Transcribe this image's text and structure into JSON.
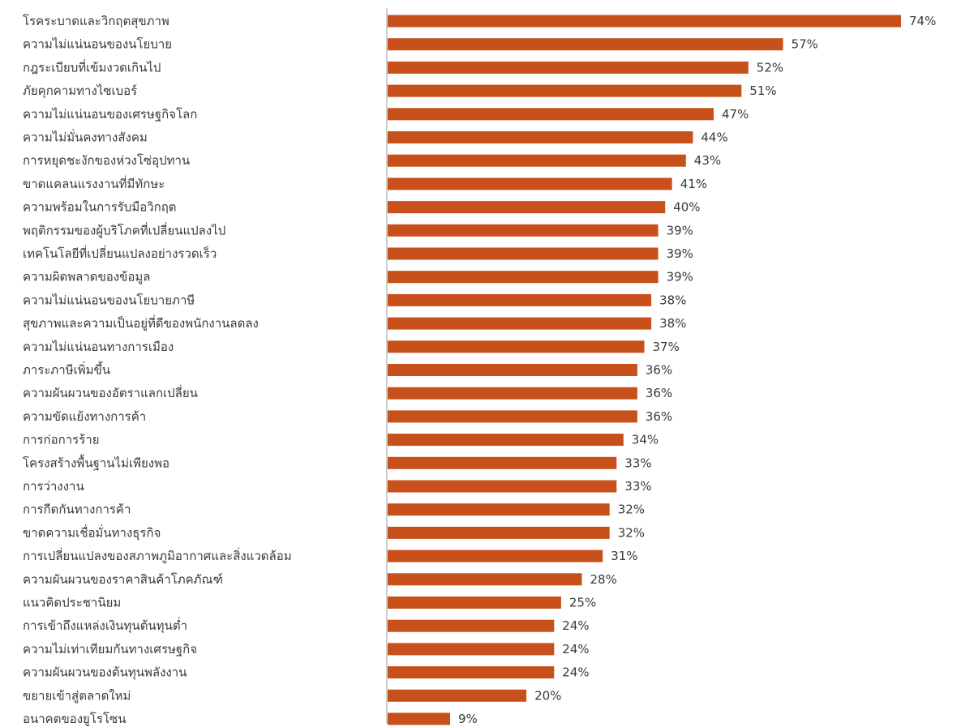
{
  "chart_data": {
    "type": "bar",
    "orientation": "horizontal",
    "title": "",
    "xlabel": "",
    "ylabel": "",
    "xlim": [
      0,
      80
    ],
    "grid": false,
    "legend": "none",
    "value_suffix": "%",
    "bar_color": "#C8501A",
    "axis_color": "#9E9E9E",
    "text_color": "#3A3A3A",
    "categories": [
      "โรคระบาดและวิกฤตสุขภาพ",
      "ความไม่แน่นอนของนโยบาย",
      "กฎระเบียบที่เข้มงวดเกินไป",
      "ภัยคุกคามทางไซเบอร์",
      "ความไม่แน่นอนของเศรษฐกิจโลก",
      "ความไม่มั่นคงทางสังคม",
      "การหยุดชะงักของห่วงโซ่อุปทาน",
      "ขาดแคลนแรงงานที่มีทักษะ",
      "ความพร้อมในการรับมือวิกฤต",
      "พฤติกรรมของผู้บริโภคที่เปลี่ยนแปลงไป",
      "เทคโนโลยีที่เปลี่ยนแปลงอย่างรวดเร็ว",
      "ความผิดพลาดของข้อมูล",
      "ความไม่แน่นอนของนโยบายภาษี",
      "สุขภาพและความเป็นอยู่ที่ดีของพนักงานลดลง",
      "ความไม่แน่นอนทางการเมือง",
      "ภาระภาษีเพิ่มขึ้น",
      "ความผันผวนของอัตราแลกเปลี่ยน",
      "ความขัดแย้งทางการค้า",
      "การก่อการร้าย",
      "โครงสร้างพื้นฐานไม่เพียงพอ",
      "การว่างงาน",
      "การกีดกันทางการค้า",
      "ขาดความเชื่อมั่นทางธุรกิจ",
      "การเปลี่ยนแปลงของสภาพภูมิอากาศและสิ่งแวดล้อม",
      "ความผันผวนของราคาสินค้าโภคภัณฑ์",
      "แนวคิดประชานิยม",
      "การเข้าถึงแหล่งเงินทุนต้นทุนต่ำ",
      "ความไม่เท่าเทียมกันทางเศรษฐกิจ",
      "ความผันผวนของต้นทุนพลังงาน",
      "ขยายเข้าสู่ตลาดใหม่",
      "อนาคตของยูโรโซน"
    ],
    "values": [
      74,
      57,
      52,
      51,
      47,
      44,
      43,
      41,
      40,
      39,
      39,
      39,
      38,
      38,
      37,
      36,
      36,
      36,
      34,
      33,
      33,
      32,
      32,
      31,
      28,
      25,
      24,
      24,
      24,
      20,
      9
    ]
  }
}
